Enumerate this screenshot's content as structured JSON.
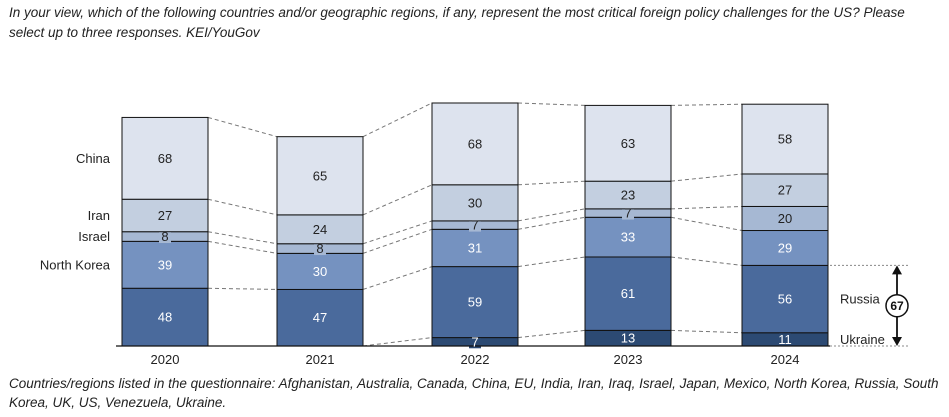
{
  "title": "In your view, which of the following countries and/or geographic regions, if any, represent the most critical foreign policy challenges for the US? Please select up to three responses. KEI/YouGov",
  "footnote": "Countries/regions listed in the questionnaire: Afghanistan, Australia, Canada, China, EU, India, Iran, Iraq, Israel, Japan, Mexico, North Korea, Russia, South Korea, UK, US, Venezuela, Ukraine.",
  "colors": {
    "China": "#dde3ee",
    "Iran": "#c3cfe0",
    "Israel": "#a6b8d3",
    "North Korea": "#7592c0",
    "Russia": "#4a6a9c",
    "Ukraine": "#2c4a73"
  },
  "chart_data": {
    "type": "bar",
    "stacked": true,
    "categories": [
      "2020",
      "2021",
      "2022",
      "2023",
      "2024"
    ],
    "series": [
      {
        "name": "Ukraine",
        "values": [
          0,
          0,
          7,
          13,
          11
        ]
      },
      {
        "name": "Russia",
        "values": [
          48,
          47,
          59,
          61,
          56
        ]
      },
      {
        "name": "North Korea",
        "values": [
          39,
          30,
          31,
          33,
          29
        ]
      },
      {
        "name": "Israel",
        "values": [
          8,
          8,
          7,
          7,
          20
        ]
      },
      {
        "name": "Iran",
        "values": [
          27,
          24,
          30,
          23,
          27
        ]
      },
      {
        "name": "China",
        "values": [
          68,
          65,
          68,
          63,
          58
        ]
      }
    ],
    "left_labels": [
      "China",
      "Iran",
      "Israel",
      "North Korea"
    ],
    "right_labels": [
      "Russia",
      "Ukraine"
    ],
    "bracket_value": "67",
    "ylim": [
      0,
      220
    ],
    "grid": false
  }
}
